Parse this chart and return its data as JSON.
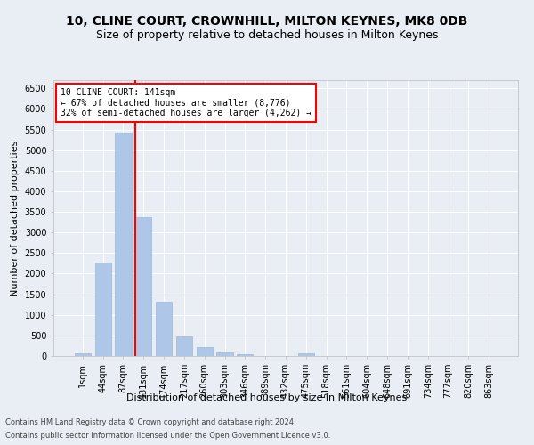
{
  "title1": "10, CLINE COURT, CROWNHILL, MILTON KEYNES, MK8 0DB",
  "title2": "Size of property relative to detached houses in Milton Keynes",
  "xlabel": "Distribution of detached houses by size in Milton Keynes",
  "ylabel": "Number of detached properties",
  "footnote1": "Contains HM Land Registry data © Crown copyright and database right 2024.",
  "footnote2": "Contains public sector information licensed under the Open Government Licence v3.0.",
  "bar_labels": [
    "1sqm",
    "44sqm",
    "87sqm",
    "131sqm",
    "174sqm",
    "217sqm",
    "260sqm",
    "303sqm",
    "346sqm",
    "389sqm",
    "432sqm",
    "475sqm",
    "518sqm",
    "561sqm",
    "604sqm",
    "648sqm",
    "691sqm",
    "734sqm",
    "777sqm",
    "820sqm",
    "863sqm"
  ],
  "bar_values": [
    70,
    2280,
    5420,
    3380,
    1310,
    480,
    210,
    90,
    50,
    10,
    5,
    60,
    0,
    0,
    0,
    0,
    0,
    0,
    0,
    0,
    0
  ],
  "bar_color": "#aec6e8",
  "bar_edgecolor": "#9ab8d8",
  "redline_index": 3,
  "annotation_text1": "10 CLINE COURT: 141sqm",
  "annotation_text2": "← 67% of detached houses are smaller (8,776)",
  "annotation_text3": "32% of semi-detached houses are larger (4,262) →",
  "ylim": [
    0,
    6700
  ],
  "yticks": [
    0,
    500,
    1000,
    1500,
    2000,
    2500,
    3000,
    3500,
    4000,
    4500,
    5000,
    5500,
    6000,
    6500
  ],
  "background_color": "#e8eef4",
  "grid_color": "#ffffff",
  "title1_fontsize": 10,
  "title2_fontsize": 9,
  "xlabel_fontsize": 8,
  "ylabel_fontsize": 8,
  "tick_fontsize": 7,
  "annot_fontsize": 7,
  "footnote_fontsize": 6
}
